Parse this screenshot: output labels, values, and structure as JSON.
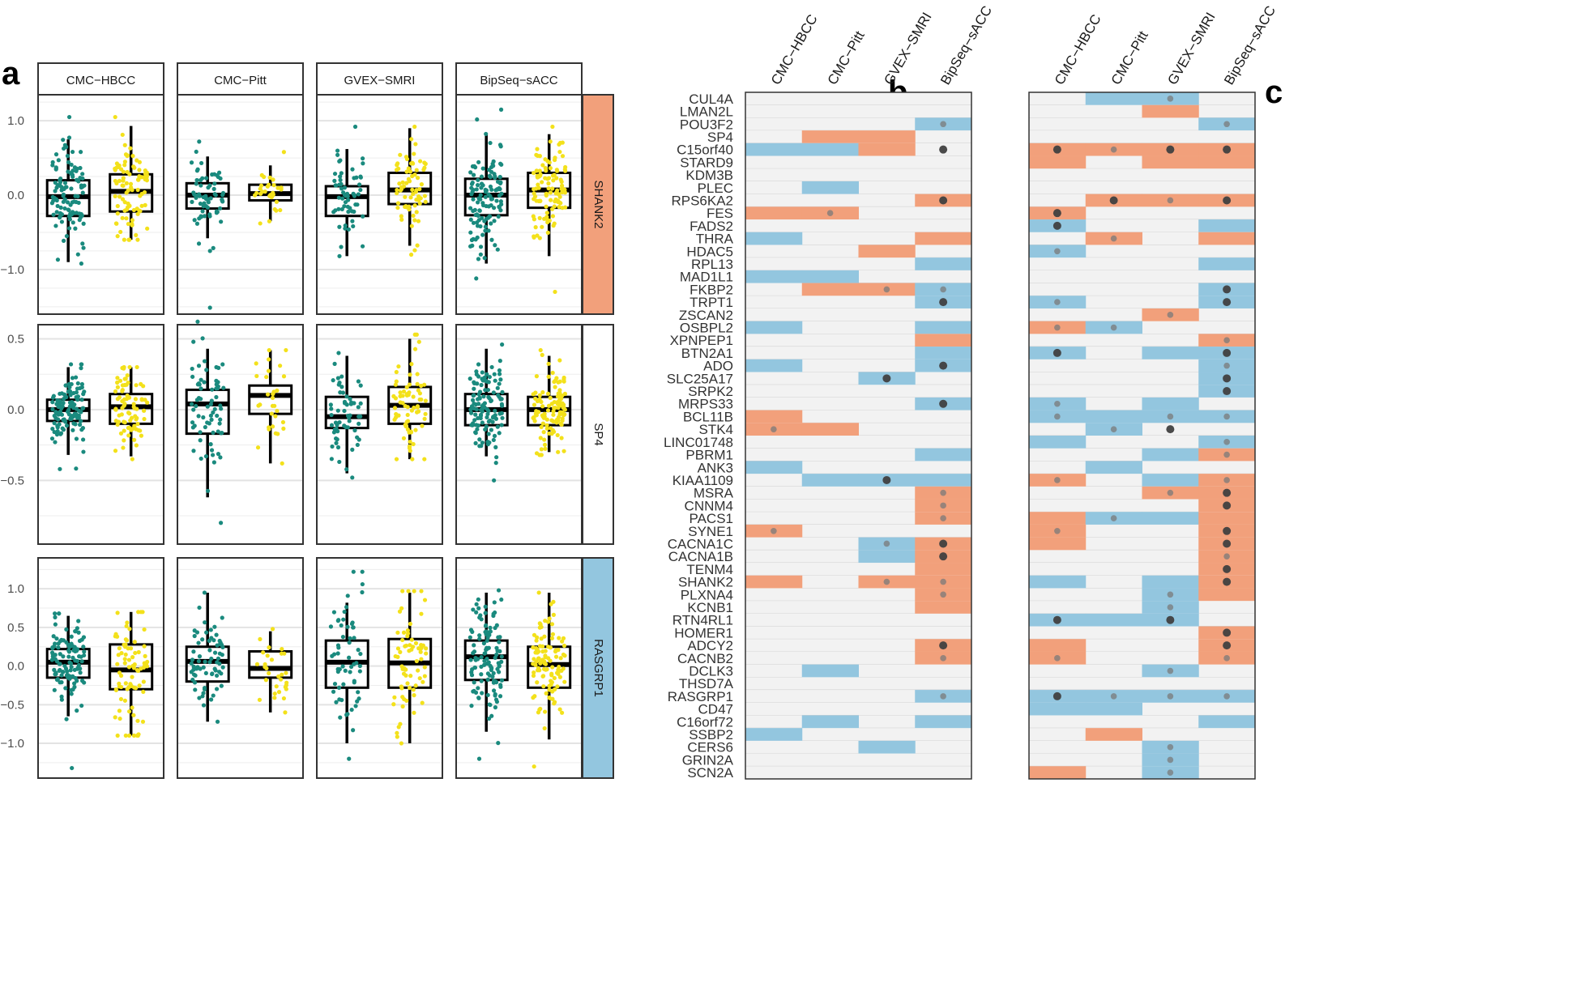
{
  "panel_labels": {
    "a": "a",
    "b": "b",
    "c": "c"
  },
  "colors": {
    "group1": "#1a8a7e",
    "group2": "#f3e11b",
    "up": "#f2a07b",
    "down": "#93c6df",
    "cell_bg": "#f2f2f2",
    "strong_dot": "#404040",
    "weak_dot": "#7a7a7a",
    "shank2_strip": "#f2a07b",
    "sp4_strip": "#ffffff",
    "rasgrp1_strip": "#93c6df"
  },
  "chart_data": [
    {
      "type": "box",
      "panel": "a",
      "cohorts": [
        "CMC−HBCC",
        "CMC−Pitt",
        "GVEX−SMRI",
        "BipSeq−sACC"
      ],
      "genes": [
        "SHANK2",
        "SP4",
        "RASGRP1"
      ],
      "groups": [
        "group1",
        "group2"
      ],
      "rows": [
        {
          "gene": "SHANK2",
          "ylim": [
            -1.6,
            1.35
          ],
          "ticks": [
            1.0,
            0.0,
            -1.0
          ],
          "tick_labels": [
            "1.0",
            "0.0",
            "−1.0"
          ],
          "boxes": [
            [
              {
                "q1": -0.28,
                "med": -0.02,
                "q3": 0.2,
                "lo": -0.9,
                "hi": 0.75,
                "n": 110,
                "min": -0.92,
                "max": 1.05
              },
              {
                "q1": -0.22,
                "med": 0.05,
                "q3": 0.28,
                "lo": -0.6,
                "hi": 0.93,
                "n": 90,
                "min": -0.6,
                "max": 1.05
              }
            ],
            [
              {
                "q1": -0.18,
                "med": 0.0,
                "q3": 0.16,
                "lo": -0.58,
                "hi": 0.52,
                "n": 70,
                "min": -0.75,
                "max": 0.72
              },
              {
                "q1": -0.07,
                "med": 0.02,
                "q3": 0.14,
                "lo": -0.35,
                "hi": 0.4,
                "n": 30,
                "min": -0.38,
                "max": 0.58
              }
            ],
            [
              {
                "q1": -0.28,
                "med": -0.02,
                "q3": 0.12,
                "lo": -0.82,
                "hi": 0.62,
                "n": 60,
                "min": -0.82,
                "max": 0.92
              },
              {
                "q1": -0.12,
                "med": 0.07,
                "q3": 0.3,
                "lo": -0.68,
                "hi": 0.9,
                "n": 70,
                "min": -0.8,
                "max": 0.92
              }
            ],
            [
              {
                "q1": -0.27,
                "med": 0.0,
                "q3": 0.22,
                "lo": -0.92,
                "hi": 0.82,
                "n": 120,
                "min": -1.12,
                "max": 1.15
              },
              {
                "q1": -0.17,
                "med": 0.07,
                "q3": 0.3,
                "lo": -0.82,
                "hi": 0.82,
                "n": 110,
                "min": -1.3,
                "max": 0.92
              }
            ]
          ]
        },
        {
          "gene": "SP4",
          "ylim": [
            -0.95,
            0.6
          ],
          "ticks": [
            0.5,
            0.0,
            -0.5
          ],
          "tick_labels": [
            "0.5",
            "0.0",
            "−0.5"
          ],
          "boxes": [
            [
              {
                "q1": -0.08,
                "med": 0.0,
                "q3": 0.07,
                "lo": -0.32,
                "hi": 0.3,
                "n": 120,
                "min": -0.42,
                "max": 0.32
              },
              {
                "q1": -0.1,
                "med": 0.02,
                "q3": 0.11,
                "lo": -0.33,
                "hi": 0.3,
                "n": 80,
                "min": -0.35,
                "max": 0.3
              }
            ],
            [
              {
                "q1": -0.17,
                "med": 0.04,
                "q3": 0.14,
                "lo": -0.62,
                "hi": 0.43,
                "n": 70,
                "min": -0.8,
                "max": 0.72
              },
              {
                "q1": -0.03,
                "med": 0.1,
                "q3": 0.17,
                "lo": -0.38,
                "hi": 0.42,
                "n": 30,
                "min": -0.38,
                "max": 0.42
              }
            ],
            [
              {
                "q1": -0.13,
                "med": -0.05,
                "q3": 0.09,
                "lo": -0.45,
                "hi": 0.38,
                "n": 60,
                "min": -0.48,
                "max": 0.4
              },
              {
                "q1": -0.1,
                "med": 0.03,
                "q3": 0.16,
                "lo": -0.35,
                "hi": 0.5,
                "n": 70,
                "min": -0.35,
                "max": 0.53
              }
            ],
            [
              {
                "q1": -0.11,
                "med": 0.0,
                "q3": 0.11,
                "lo": -0.33,
                "hi": 0.43,
                "n": 120,
                "min": -0.5,
                "max": 0.46
              },
              {
                "q1": -0.11,
                "med": 0.0,
                "q3": 0.09,
                "lo": -0.3,
                "hi": 0.38,
                "n": 110,
                "min": -0.32,
                "max": 0.42
              }
            ]
          ]
        },
        {
          "gene": "RASGRP1",
          "ylim": [
            -1.45,
            1.4
          ],
          "ticks": [
            1.0,
            0.5,
            0.0,
            -0.5,
            -1.0
          ],
          "tick_labels": [
            "1.0",
            "0.5",
            "0.0",
            "−0.5",
            "−1.0"
          ],
          "boxes": [
            [
              {
                "q1": -0.15,
                "med": 0.05,
                "q3": 0.22,
                "lo": -0.65,
                "hi": 0.65,
                "n": 110,
                "min": -1.32,
                "max": 0.68
              },
              {
                "q1": -0.3,
                "med": -0.05,
                "q3": 0.28,
                "lo": -0.9,
                "hi": 0.7,
                "n": 80,
                "min": -0.9,
                "max": 0.7
              }
            ],
            [
              {
                "q1": -0.2,
                "med": 0.06,
                "q3": 0.25,
                "lo": -0.72,
                "hi": 0.95,
                "n": 70,
                "min": -0.72,
                "max": 0.95
              },
              {
                "q1": -0.15,
                "med": -0.03,
                "q3": 0.19,
                "lo": -0.6,
                "hi": 0.45,
                "n": 30,
                "min": -0.6,
                "max": 0.48
              }
            ],
            [
              {
                "q1": -0.28,
                "med": 0.05,
                "q3": 0.33,
                "lo": -1.0,
                "hi": 0.82,
                "n": 60,
                "min": -1.2,
                "max": 1.22
              },
              {
                "q1": -0.28,
                "med": 0.04,
                "q3": 0.35,
                "lo": -1.0,
                "hi": 0.95,
                "n": 70,
                "min": -1.0,
                "max": 0.97
              }
            ],
            [
              {
                "q1": -0.18,
                "med": 0.12,
                "q3": 0.33,
                "lo": -0.85,
                "hi": 0.95,
                "n": 120,
                "min": -1.2,
                "max": 0.98
              },
              {
                "q1": -0.28,
                "med": 0.02,
                "q3": 0.25,
                "lo": -0.95,
                "hi": 0.95,
                "n": 110,
                "min": -1.3,
                "max": 0.95
              }
            ]
          ]
        }
      ]
    },
    {
      "type": "heatmap",
      "panel": "b",
      "columns": [
        "CMC−HBCC",
        "CMC−Pitt",
        "GVEX−SMRI",
        "BipSeq−sACC"
      ],
      "genes": [
        "CUL4A",
        "LMAN2L",
        "POU3F2",
        "SP4",
        "C15orf40",
        "STARD9",
        "KDM3B",
        "PLEC",
        "RPS6KA2",
        "FES",
        "FADS2",
        "THRA",
        "HDAC5",
        "RPL13",
        "MAD1L1",
        "FKBP2",
        "TRPT1",
        "ZSCAN2",
        "OSBPL2",
        "XPNPEP1",
        "BTN2A1",
        "ADO",
        "SLC25A17",
        "SRPK2",
        "MRPS33",
        "BCL11B",
        "STK4",
        "LINC01748",
        "PBRM1",
        "ANK3",
        "KIAA1109",
        "MSRA",
        "CNNM4",
        "PACS1",
        "SYNE1",
        "CACNA1C",
        "CACNA1B",
        "TENM4",
        "SHANK2",
        "PLXNA4",
        "KCNB1",
        "RTN4RL1",
        "HOMER1",
        "ADCY2",
        "CACNB2",
        "DCLK3",
        "THSD7A",
        "RASGRP1",
        "CD47",
        "C16orf72",
        "SSBP2",
        "CERS6",
        "GRIN2A",
        "SCN2A"
      ],
      "direction": [
        "0000",
        "0000",
        "000d",
        "0uu0",
        "ddu0u",
        "0000",
        "0000",
        "0d00",
        "000u",
        "uu00",
        "0000",
        "d00u",
        "00u0",
        "000d",
        "dd00",
        "0uud",
        "000d",
        "0000",
        "d00d",
        "000u",
        "000d",
        "d00d",
        "00d0",
        "0000",
        "000d",
        "u000",
        "uu00",
        "0000",
        "000d",
        "d000",
        "0ddd",
        "000u",
        "000u",
        "000u",
        "u000",
        "00du",
        "00du",
        "000u",
        "u0uu",
        "000u",
        "000u",
        "0000",
        "0000",
        "000u",
        "000u",
        "0d00",
        "0000",
        "000d",
        "0000",
        "0d0d",
        "d000",
        "00d0",
        "0000",
        "0000"
      ],
      "dots": [
        "0000",
        "0000",
        "000w",
        "0000",
        "000s",
        "0000",
        "0000",
        "0000",
        "000s",
        "0w00",
        "0000",
        "0000",
        "0000",
        "0000",
        "0000",
        "00ww",
        "000s",
        "0000",
        "0000",
        "0000",
        "0000",
        "000s",
        "00s0",
        "0000",
        "000s",
        "0000",
        "w000",
        "0000",
        "0000",
        "0000",
        "00s0",
        "000w",
        "000w",
        "000w",
        "w000",
        "00ws",
        "000s",
        "0000",
        "00ww",
        "000w",
        "0000",
        "0000",
        "0000",
        "000s",
        "000w",
        "0000",
        "0000",
        "000w",
        "0000",
        "0000",
        "0000",
        "0000",
        "0000",
        "0000"
      ]
    },
    {
      "type": "heatmap",
      "panel": "c",
      "columns": [
        "CMC−HBCC",
        "CMC−Pitt",
        "GVEX−SMRI",
        "BipSeq−sACC"
      ],
      "genes": [
        "CUL4A",
        "LMAN2L",
        "POU3F2",
        "SP4",
        "C15orf40",
        "STARD9",
        "KDM3B",
        "PLEC",
        "RPS6KA2",
        "FES",
        "FADS2",
        "THRA",
        "HDAC5",
        "RPL13",
        "MAD1L1",
        "FKBP2",
        "TRPT1",
        "ZSCAN2",
        "OSBPL2",
        "XPNPEP1",
        "BTN2A1",
        "ADO",
        "SLC25A17",
        "SRPK2",
        "MRPS33",
        "BCL11B",
        "STK4",
        "LINC01748",
        "PBRM1",
        "ANK3",
        "KIAA1109",
        "MSRA",
        "CNNM4",
        "PACS1",
        "SYNE1",
        "CACNA1C",
        "CACNA1B",
        "TENM4",
        "SHANK2",
        "PLXNA4",
        "KCNB1",
        "RTN4RL1",
        "HOMER1",
        "ADCY2",
        "CACNB2",
        "DCLK3",
        "THSD7A",
        "RASGRP1",
        "CD47",
        "C16orf72",
        "SSBP2",
        "CERS6",
        "GRIN2A",
        "SCN2A"
      ],
      "direction": [
        "0dd0",
        "00u0",
        "000d",
        "0000",
        "uuuu",
        "u0uu",
        "0000",
        "0000",
        "0uuu",
        "u000",
        "d00d",
        "0u0u",
        "d000",
        "000d",
        "0000",
        "000d",
        "d00d",
        "00u0",
        "ud00",
        "000u",
        "d0dd",
        "000d",
        "000d",
        "000d",
        "d0d0",
        "dddd",
        "0d00",
        "d00d",
        "00du",
        "0d00",
        "u0du",
        "00uu",
        "000u",
        "uddu",
        "u00u",
        "u00u",
        "000u",
        "000u",
        "d0du",
        "00du",
        "00d0",
        "ddd0",
        "000u",
        "u00u",
        "u00u",
        "00d0",
        "0000",
        "dddd",
        "dd00",
        "000d",
        "0u00",
        "00d0",
        "00d0",
        "u0d0"
      ],
      "dots": [
        "00w0",
        "0000",
        "000w",
        "0000",
        "swss",
        "0000",
        "0000",
        "0000",
        "0sws",
        "s000",
        "s000",
        "0w00",
        "w000",
        "0000",
        "0000",
        "000s",
        "w00s",
        "00w0",
        "ww00",
        "000w",
        "s00s",
        "000w",
        "000s",
        "000s",
        "w000",
        "w0ww",
        "0ws0",
        "000w",
        "000w",
        "0000",
        "w00w",
        "00ws",
        "000s",
        "0w00",
        "w00s",
        "000s",
        "000w",
        "000s",
        "000s",
        "00w0",
        "00w0",
        "s0s0",
        "000s",
        "000s",
        "w00w",
        "00w0",
        "0000",
        "swww",
        "0000",
        "0000",
        "0000",
        "00w0",
        "00w0",
        "00w0"
      ]
    }
  ]
}
